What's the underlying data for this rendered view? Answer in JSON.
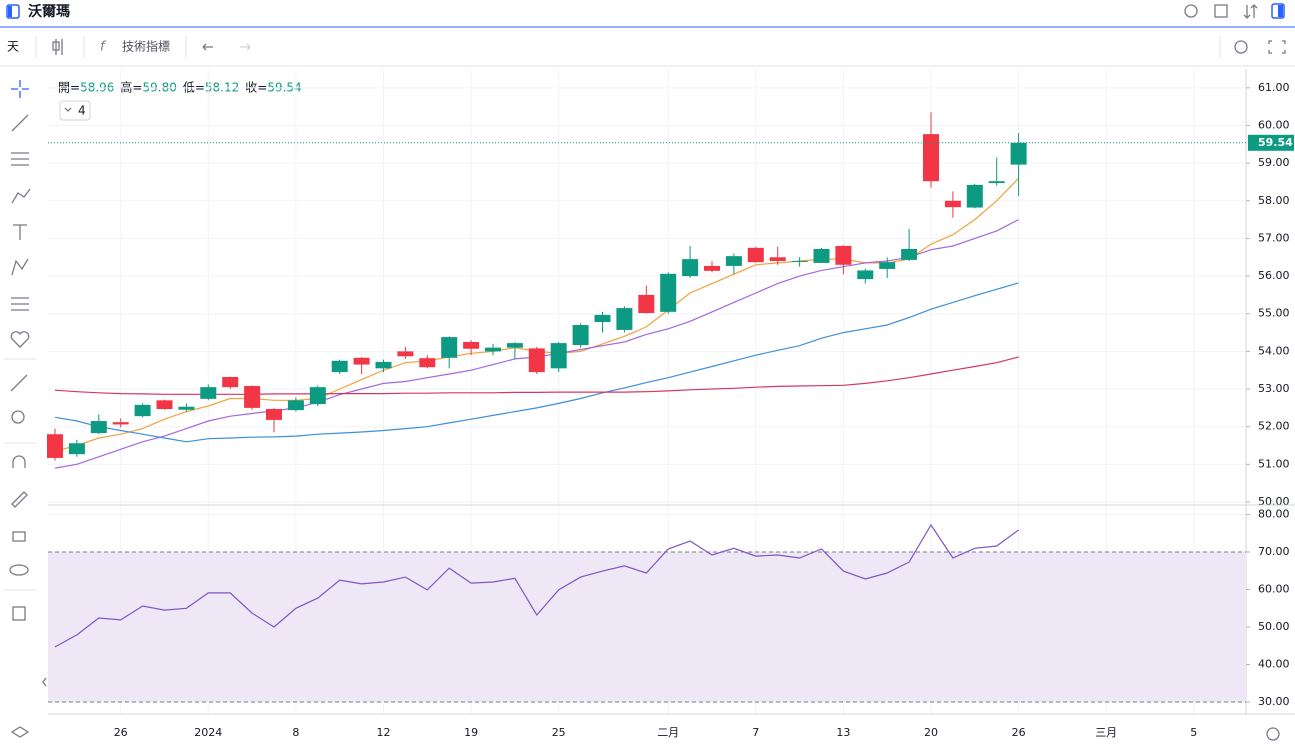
{
  "header": {
    "title": "沃爾瑪"
  },
  "toolbar": {
    "interval": "天",
    "indicators": "技術指標"
  },
  "ohlc_legend": [
    {
      "label": "開=",
      "value": "58.96"
    },
    {
      "label": "高=",
      "value": "59.80"
    },
    {
      "label": "低=",
      "value": "58.12"
    },
    {
      "label": "收=",
      "value": "59.54"
    }
  ],
  "legend_toggle": "4",
  "chart_data": [
    {
      "type": "candlestick",
      "categories": [
        null,
        null,
        null,
        "26",
        null,
        null,
        null,
        "2024",
        null,
        null,
        null,
        "8",
        null,
        null,
        null,
        "12",
        null,
        null,
        null,
        "19",
        null,
        null,
        null,
        "25",
        null,
        null,
        null,
        null,
        "二月",
        null,
        null,
        null,
        "7",
        null,
        null,
        null,
        "13",
        null,
        null,
        null,
        "20",
        null,
        null,
        null,
        "26",
        null,
        null,
        null,
        "三月",
        null,
        null,
        null,
        "5",
        null
      ],
      "open": [
        51.8,
        51.27,
        51.83,
        52.12,
        52.28,
        52.7,
        52.45,
        52.74,
        53.32,
        53.08,
        52.47,
        52.44,
        52.6,
        53.45,
        53.83,
        53.55,
        54.0,
        53.82,
        53.83,
        54.25,
        54.0,
        54.1,
        54.08,
        53.55,
        54.17,
        54.78,
        54.57,
        55.5,
        55.05,
        56.0,
        56.27,
        56.27,
        56.75,
        56.5,
        56.38,
        56.35,
        56.8,
        55.92,
        56.19,
        56.43,
        59.77,
        58.0,
        57.82,
        58.47,
        58.96,
        null,
        null,
        null,
        null,
        null,
        null,
        null,
        null,
        null
      ],
      "high": [
        51.95,
        51.65,
        52.33,
        52.22,
        52.62,
        52.72,
        52.62,
        53.12,
        53.33,
        53.1,
        52.5,
        52.78,
        53.1,
        53.78,
        53.85,
        53.78,
        54.12,
        53.9,
        54.4,
        54.3,
        54.2,
        54.25,
        54.12,
        54.25,
        54.75,
        55.05,
        55.2,
        55.75,
        56.1,
        56.8,
        56.4,
        56.6,
        56.78,
        56.78,
        56.5,
        56.75,
        56.82,
        56.2,
        56.5,
        57.25,
        60.35,
        58.25,
        58.45,
        59.15,
        59.8,
        null,
        null,
        null,
        null,
        null,
        null,
        null,
        null,
        null
      ],
      "low": [
        51.1,
        51.2,
        51.8,
        51.98,
        52.25,
        52.45,
        52.4,
        52.7,
        53.0,
        52.45,
        51.85,
        52.4,
        52.55,
        53.4,
        53.4,
        53.45,
        53.8,
        53.55,
        53.55,
        53.9,
        53.9,
        53.8,
        53.4,
        53.45,
        54.1,
        54.5,
        54.5,
        55.0,
        55.0,
        55.95,
        56.1,
        56.05,
        56.35,
        56.3,
        56.25,
        56.35,
        56.05,
        55.8,
        55.95,
        56.4,
        58.35,
        57.55,
        57.8,
        58.4,
        58.12,
        null,
        null,
        null,
        null,
        null,
        null,
        null,
        null,
        null
      ],
      "close": [
        51.17,
        51.56,
        52.15,
        52.06,
        52.58,
        52.47,
        52.53,
        53.05,
        53.05,
        52.5,
        52.18,
        52.7,
        53.05,
        53.75,
        53.65,
        53.72,
        53.87,
        53.58,
        54.38,
        54.07,
        54.1,
        54.22,
        53.45,
        54.22,
        54.7,
        54.97,
        55.15,
        55.02,
        56.06,
        56.45,
        56.14,
        56.53,
        56.37,
        56.4,
        56.4,
        56.72,
        56.3,
        56.15,
        56.37,
        56.72,
        58.52,
        57.83,
        58.42,
        58.52,
        59.54,
        null,
        null,
        null,
        null,
        null,
        null,
        null,
        null,
        null
      ],
      "up_color": "#0d9a82",
      "down_color": "#f23645",
      "overlays": [
        {
          "color": "#f0a23c",
          "values": [
            51.35,
            51.5,
            51.7,
            51.8,
            51.95,
            52.2,
            52.4,
            52.55,
            52.75,
            52.75,
            52.7,
            52.7,
            52.75,
            53.0,
            53.25,
            53.5,
            53.7,
            53.75,
            53.85,
            53.95,
            54.0,
            54.1,
            54.0,
            53.95,
            54.0,
            54.2,
            54.4,
            54.65,
            55.1,
            55.55,
            55.8,
            56.05,
            56.3,
            56.35,
            56.4,
            56.45,
            56.45,
            56.35,
            56.35,
            56.45,
            56.85,
            57.1,
            57.5,
            58.0,
            58.6,
            null,
            null,
            null,
            null,
            null,
            null,
            null,
            null,
            null
          ]
        },
        {
          "color": "#a268e0",
          "values": [
            50.9,
            51.0,
            51.2,
            51.4,
            51.6,
            51.75,
            51.95,
            52.15,
            52.28,
            52.35,
            52.42,
            52.5,
            52.65,
            52.85,
            53.0,
            53.15,
            53.2,
            53.3,
            53.4,
            53.5,
            53.65,
            53.8,
            53.85,
            53.95,
            54.05,
            54.15,
            54.25,
            54.45,
            54.6,
            54.8,
            55.05,
            55.3,
            55.55,
            55.8,
            56.0,
            56.15,
            56.25,
            56.35,
            56.4,
            56.5,
            56.7,
            56.8,
            57.0,
            57.2,
            57.5,
            null,
            null,
            null,
            null,
            null,
            null,
            null,
            null,
            null
          ]
        },
        {
          "color": "#3d8fdb",
          "values": [
            52.25,
            52.15,
            52.0,
            51.9,
            51.8,
            51.7,
            51.6,
            51.68,
            51.7,
            51.72,
            51.73,
            51.75,
            51.8,
            51.83,
            51.86,
            51.9,
            51.95,
            52.0,
            52.1,
            52.2,
            52.3,
            52.4,
            52.5,
            52.62,
            52.75,
            52.9,
            53.03,
            53.17,
            53.3,
            53.45,
            53.6,
            53.75,
            53.9,
            54.03,
            54.15,
            54.35,
            54.5,
            54.6,
            54.7,
            54.9,
            55.12,
            55.3,
            55.48,
            55.65,
            55.82,
            null,
            null,
            null,
            null,
            null,
            null,
            null,
            null,
            null
          ]
        },
        {
          "color": "#d6375f",
          "values": [
            52.97,
            52.93,
            52.9,
            52.88,
            52.87,
            52.86,
            52.86,
            52.86,
            52.86,
            52.86,
            52.87,
            52.87,
            52.87,
            52.88,
            52.88,
            52.88,
            52.89,
            52.89,
            52.9,
            52.9,
            52.9,
            52.91,
            52.91,
            52.92,
            52.92,
            52.92,
            52.92,
            52.93,
            52.95,
            52.98,
            53.0,
            53.02,
            53.05,
            53.07,
            53.08,
            53.09,
            53.1,
            53.15,
            53.22,
            53.3,
            53.4,
            53.5,
            53.6,
            53.7,
            53.85,
            null,
            null,
            null,
            null,
            null,
            null,
            null,
            null,
            null
          ]
        }
      ],
      "last_price_label": "59.54",
      "ylim": [
        50,
        61.5
      ],
      "yticks": [
        {
          "value": 50,
          "label": "50.00"
        },
        {
          "value": 51,
          "label": "51.00"
        },
        {
          "value": 52,
          "label": "52.00"
        },
        {
          "value": 53,
          "label": "53.00"
        },
        {
          "value": 54,
          "label": "54.00"
        },
        {
          "value": 55,
          "label": "55.00"
        },
        {
          "value": 56,
          "label": "56.00"
        },
        {
          "value": 57,
          "label": "57.00"
        },
        {
          "value": 58,
          "label": "58.00"
        },
        {
          "value": 59,
          "label": "59.00"
        },
        {
          "value": 60,
          "label": "60.00"
        },
        {
          "value": 61,
          "label": "61.00"
        }
      ],
      "grid": true
    },
    {
      "type": "line",
      "color": "#7e57c2",
      "band_color": "#ede7f6",
      "values": [
        44.7,
        47.9,
        52.4,
        51.9,
        55.6,
        54.5,
        55,
        59.1,
        59.1,
        53.7,
        50,
        55,
        57.7,
        62.5,
        61.5,
        62,
        63.3,
        59.9,
        65.7,
        61.7,
        62,
        63,
        53.2,
        59.9,
        63.3,
        64.9,
        66.3,
        64.4,
        70.8,
        72.9,
        69.2,
        71,
        68.9,
        69.2,
        68.4,
        70.8,
        64.9,
        62.8,
        64.4,
        67.3,
        77.2,
        68.4,
        71,
        71.6,
        75.9,
        null,
        null,
        null,
        null,
        null,
        null,
        null,
        null,
        null
      ],
      "band": [
        30,
        70
      ],
      "ylim": [
        30,
        82
      ],
      "yticks": [
        {
          "value": 30,
          "label": "30.00"
        },
        {
          "value": 40,
          "label": "40.00"
        },
        {
          "value": 50,
          "label": "50.00"
        },
        {
          "value": 60,
          "label": "60.00"
        },
        {
          "value": 70,
          "label": "70.00"
        },
        {
          "value": 80,
          "label": "80.00"
        }
      ],
      "grid": true
    }
  ]
}
